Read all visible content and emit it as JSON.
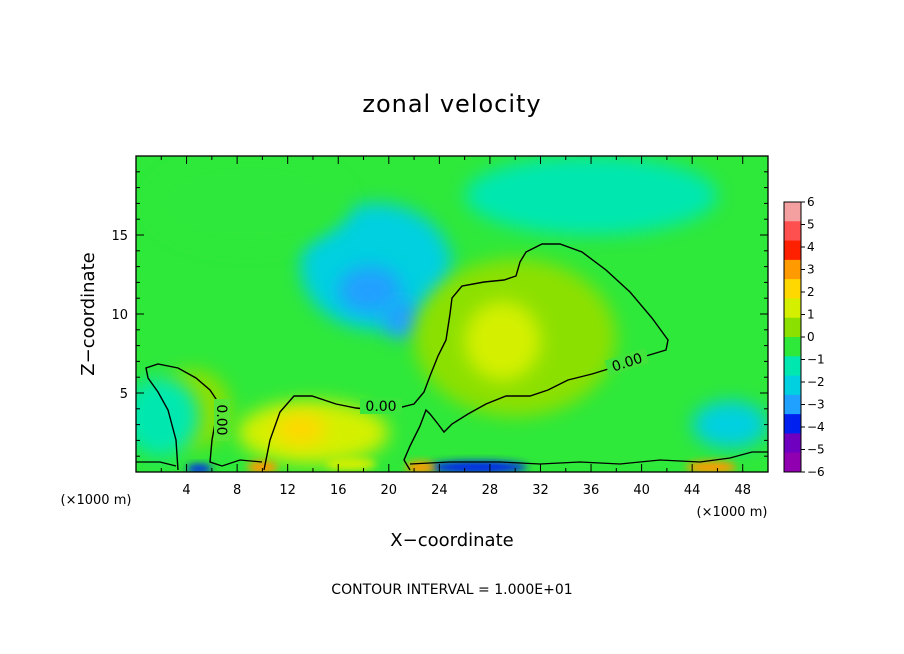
{
  "chart_data": {
    "type": "heatmap",
    "title": "zonal velocity",
    "xlabel": "X−coordinate",
    "ylabel": "Z−coordinate",
    "x_unit_left": "(×1000 m)",
    "x_unit_right": "(×1000 m)",
    "xlim": [
      0,
      50
    ],
    "ylim": [
      0,
      20
    ],
    "x_ticks": [
      4,
      8,
      12,
      16,
      20,
      24,
      28,
      32,
      36,
      40,
      44,
      48
    ],
    "x_tick_labels": [
      "4",
      "8",
      "12",
      "16",
      "20",
      "24",
      "28",
      "32",
      "36",
      "40",
      "44",
      "48"
    ],
    "y_ticks": [
      5,
      10,
      15
    ],
    "y_tick_labels": [
      "5",
      "10",
      "15"
    ],
    "footnote": "CONTOUR INTERVAL = 1.000E+01",
    "colorbar": {
      "levels": [
        6,
        5,
        4,
        3,
        2,
        1,
        0,
        -1,
        -2,
        -3,
        -4,
        -5,
        -6
      ],
      "labels": [
        "6",
        "5",
        "4",
        "3",
        "2",
        "1",
        "0",
        "−1",
        "−2",
        "−3",
        "−4",
        "−5",
        "−6"
      ],
      "colors": [
        "#f4a0a0",
        "#ff5050",
        "#ff2000",
        "#ff9a00",
        "#ffd800",
        "#d4f000",
        "#8ce000",
        "#2ee83a",
        "#00e8b0",
        "#00d0e0",
        "#20a0ff",
        "#0020f0",
        "#7000c0",
        "#9000b0"
      ]
    },
    "contour_labels": [
      "0.00",
      "0.00",
      "0.00"
    ],
    "blobs": [
      {
        "x": 19,
        "y": 13,
        "rx": 6,
        "ry": 4,
        "value": -2.5
      },
      {
        "x": 18.5,
        "y": 11.5,
        "rx": 2.5,
        "ry": 1.5,
        "value": -3
      },
      {
        "x": 21,
        "y": 9.7,
        "rx": 1.5,
        "ry": 1.2,
        "value": -3
      },
      {
        "x": 9,
        "y": 17,
        "rx": 8,
        "ry": 3,
        "value": -0.8
      },
      {
        "x": 36,
        "y": 17.5,
        "rx": 10,
        "ry": 2.5,
        "value": -1.2
      },
      {
        "x": 30,
        "y": 8.5,
        "rx": 8,
        "ry": 5,
        "value": 0.8
      },
      {
        "x": 29,
        "y": 8.3,
        "rx": 3,
        "ry": 2.5,
        "value": 1.5
      },
      {
        "x": 14,
        "y": 2.5,
        "rx": 6,
        "ry": 2,
        "value": 1.2
      },
      {
        "x": 13,
        "y": 2.7,
        "rx": 2,
        "ry": 1,
        "value": 2.5
      },
      {
        "x": 4.5,
        "y": 4,
        "rx": 3,
        "ry": 2.5,
        "value": 0.6
      },
      {
        "x": 47,
        "y": 3,
        "rx": 3,
        "ry": 1.5,
        "value": -2
      },
      {
        "x": 2,
        "y": 3.5,
        "rx": 3,
        "ry": 2.5,
        "value": -1.8
      },
      {
        "x": 27,
        "y": 0.3,
        "rx": 4,
        "ry": 0.4,
        "value": -4.5
      },
      {
        "x": 10,
        "y": 0.3,
        "rx": 1.2,
        "ry": 0.4,
        "value": 4
      },
      {
        "x": 22.5,
        "y": 0.3,
        "rx": 1.2,
        "ry": 0.4,
        "value": 4
      },
      {
        "x": 45.5,
        "y": 0.3,
        "rx": 2,
        "ry": 0.4,
        "value": 3.5
      },
      {
        "x": 5,
        "y": 0.2,
        "rx": 1,
        "ry": 0.3,
        "value": -4
      },
      {
        "x": 17,
        "y": 0.5,
        "rx": 2,
        "ry": 0.4,
        "value": 2
      }
    ]
  }
}
